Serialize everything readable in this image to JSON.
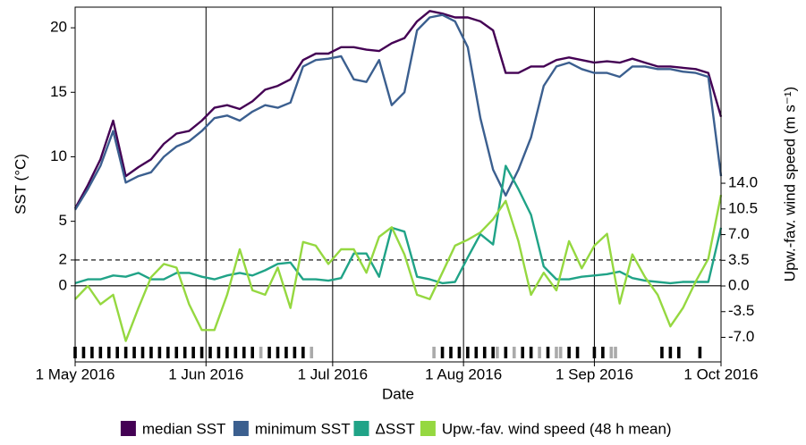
{
  "chart_data": {
    "type": "line",
    "x_label": "Date",
    "y_label": "SST (°C)",
    "y2_label": "Upw.-fav. wind speed (m s⁻¹)",
    "x": [
      "2016-05-01",
      "2016-05-04",
      "2016-05-07",
      "2016-05-10",
      "2016-05-13",
      "2016-05-16",
      "2016-05-19",
      "2016-05-22",
      "2016-05-25",
      "2016-05-28",
      "2016-05-31",
      "2016-06-03",
      "2016-06-06",
      "2016-06-09",
      "2016-06-12",
      "2016-06-15",
      "2016-06-18",
      "2016-06-21",
      "2016-06-24",
      "2016-06-27",
      "2016-06-30",
      "2016-07-03",
      "2016-07-06",
      "2016-07-09",
      "2016-07-12",
      "2016-07-15",
      "2016-07-18",
      "2016-07-21",
      "2016-07-24",
      "2016-07-27",
      "2016-07-30",
      "2016-08-02",
      "2016-08-05",
      "2016-08-08",
      "2016-08-11",
      "2016-08-14",
      "2016-08-17",
      "2016-08-20",
      "2016-08-23",
      "2016-08-26",
      "2016-08-29",
      "2016-09-01",
      "2016-09-04",
      "2016-09-07",
      "2016-09-10",
      "2016-09-13",
      "2016-09-16",
      "2016-09-19",
      "2016-09-22",
      "2016-09-25",
      "2016-09-28",
      "2016-10-01"
    ],
    "series": [
      {
        "name": "median SST",
        "color": "#440154",
        "values": [
          6.0,
          7.8,
          9.8,
          12.8,
          8.5,
          9.2,
          9.8,
          11.0,
          11.8,
          12.0,
          12.8,
          13.8,
          14.0,
          13.7,
          14.3,
          15.2,
          15.5,
          16.0,
          17.5,
          18.0,
          18.0,
          18.5,
          18.5,
          18.3,
          18.2,
          18.8,
          19.2,
          20.5,
          21.3,
          21.1,
          20.8,
          20.8,
          20.5,
          19.8,
          16.5,
          16.5,
          17.0,
          17.0,
          17.5,
          17.7,
          17.5,
          17.3,
          17.4,
          17.3,
          17.6,
          17.3,
          17.0,
          17.0,
          16.9,
          16.8,
          16.5,
          13.1
        ]
      },
      {
        "name": "minimum SST",
        "color": "#3b5f8f",
        "values": [
          5.9,
          7.5,
          9.3,
          12.0,
          8.0,
          8.5,
          8.8,
          10.0,
          10.8,
          11.2,
          12.0,
          13.0,
          13.2,
          12.8,
          13.5,
          14.0,
          13.8,
          14.2,
          17.0,
          17.5,
          17.6,
          17.8,
          16.0,
          15.8,
          17.5,
          14.0,
          15.0,
          19.8,
          20.8,
          21.0,
          20.5,
          18.5,
          13.0,
          9.0,
          7.0,
          9.0,
          11.5,
          15.5,
          17.0,
          17.3,
          16.8,
          16.5,
          16.5,
          16.2,
          17.0,
          17.0,
          16.8,
          16.8,
          16.6,
          16.5,
          16.2,
          8.5
        ]
      },
      {
        "name": "ΔSST",
        "color": "#20a387",
        "values": [
          0.2,
          0.5,
          0.5,
          0.8,
          0.7,
          1.0,
          0.5,
          0.5,
          1.0,
          1.0,
          0.7,
          0.5,
          0.8,
          1.0,
          0.8,
          1.2,
          1.7,
          1.8,
          0.5,
          0.5,
          0.4,
          0.6,
          2.5,
          2.5,
          0.7,
          4.5,
          4.2,
          0.7,
          0.5,
          0.2,
          0.3,
          2.2,
          4.0,
          3.2,
          9.3,
          7.5,
          5.5,
          1.5,
          0.5,
          0.5,
          0.7,
          0.8,
          0.9,
          1.1,
          0.6,
          0.4,
          0.3,
          0.2,
          0.3,
          0.3,
          0.3,
          4.5
        ]
      },
      {
        "name": "Upw.-fav. wind speed (48 h mean)",
        "color": "#95d840",
        "axis": "y2",
        "values": [
          -1.8,
          0.0,
          -2.5,
          -1.2,
          -7.5,
          -3.0,
          1.2,
          3.0,
          2.5,
          -2.5,
          -6.0,
          -6.0,
          -1.2,
          5.0,
          -0.6,
          -1.2,
          2.5,
          -3.0,
          6.0,
          5.5,
          3.0,
          5.0,
          5.0,
          1.8,
          6.7,
          8.0,
          4.3,
          -1.2,
          -1.8,
          1.8,
          5.5,
          6.3,
          7.3,
          9.1,
          11.6,
          6.1,
          -1.2,
          1.8,
          -0.6,
          6.1,
          2.4,
          5.5,
          7.1,
          -2.4,
          4.3,
          1.2,
          -1.2,
          -5.5,
          -3.0,
          0.6,
          3.7,
          12.4
        ]
      }
    ],
    "xlim": [
      "2016-05-01",
      "2016-10-01"
    ],
    "xticks": [
      {
        "value": "2016-05-01",
        "label": "1 May 2016"
      },
      {
        "value": "2016-06-01",
        "label": "1 Jun 2016"
      },
      {
        "value": "2016-07-01",
        "label": "1 Jul 2016"
      },
      {
        "value": "2016-08-01",
        "label": "1 Aug 2016"
      },
      {
        "value": "2016-09-01",
        "label": "1 Sep 2016"
      },
      {
        "value": "2016-10-01",
        "label": "1 Oct 2016"
      }
    ],
    "xgrid": true,
    "ylim": [
      -5.9,
      21.6
    ],
    "yticks": [
      0,
      2,
      5,
      10,
      15,
      20
    ],
    "y2lim": [
      -10.35,
      38
    ],
    "y2ticks": [
      {
        "value": -7,
        "label": "-7.0"
      },
      {
        "value": -3.5,
        "label": "-3.5"
      },
      {
        "value": 0,
        "label": "0.0"
      },
      {
        "value": 3.5,
        "label": "3.5"
      },
      {
        "value": 7,
        "label": "7.0"
      },
      {
        "value": 10.5,
        "label": "10.5"
      },
      {
        "value": 14,
        "label": "14.0"
      }
    ],
    "hlines": [
      {
        "value": 0,
        "style": "solid"
      },
      {
        "value": 2,
        "style": "dashed"
      }
    ],
    "event_markers": [
      {
        "color": "#000000",
        "dates": [
          "2016-05-01",
          "2016-05-03",
          "2016-05-05",
          "2016-05-07",
          "2016-05-09",
          "2016-05-11",
          "2016-05-13",
          "2016-05-15",
          "2016-05-17",
          "2016-05-19",
          "2016-05-21",
          "2016-05-23",
          "2016-05-25",
          "2016-05-27",
          "2016-05-29",
          "2016-05-31",
          "2016-06-02",
          "2016-06-04",
          "2016-06-06",
          "2016-06-08",
          "2016-06-10",
          "2016-06-12",
          "2016-06-16",
          "2016-06-18",
          "2016-06-20",
          "2016-06-22",
          "2016-06-24",
          "2016-07-27",
          "2016-07-29",
          "2016-07-31",
          "2016-08-02",
          "2016-08-04",
          "2016-08-06",
          "2016-08-08",
          "2016-08-11",
          "2016-08-15",
          "2016-08-17",
          "2016-08-21",
          "2016-08-26",
          "2016-08-28",
          "2016-09-01",
          "2016-09-03",
          "2016-09-17",
          "2016-09-19",
          "2016-09-21",
          "2016-09-26"
        ]
      },
      {
        "color": "#aaaaaa",
        "dates": [
          "2016-06-14",
          "2016-06-26",
          "2016-07-25",
          "2016-08-09",
          "2016-08-13",
          "2016-08-19",
          "2016-08-23",
          "2016-08-24",
          "2016-09-05",
          "2016-09-06"
        ]
      }
    ],
    "legend": "bottom"
  }
}
